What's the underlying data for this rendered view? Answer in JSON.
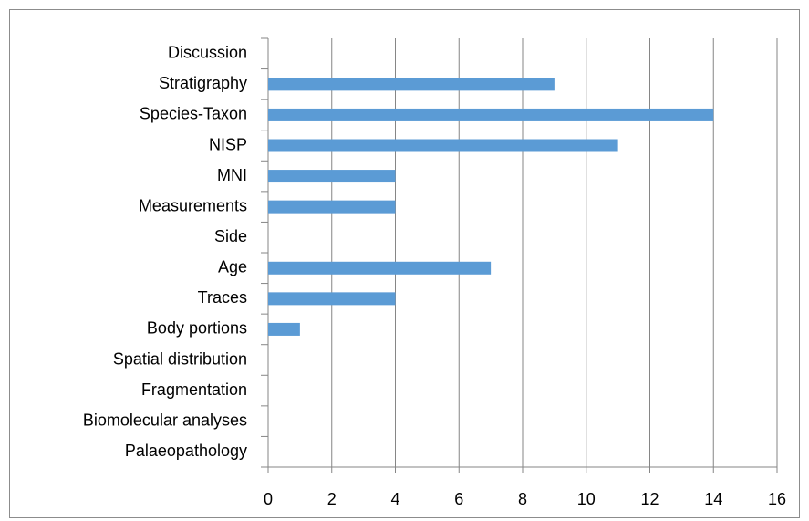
{
  "chart_data": {
    "type": "hbar",
    "categories": [
      "Discussion",
      "Stratigraphy",
      "Species-Taxon",
      "NISP",
      "MNI",
      "Measurements",
      "Side",
      "Age",
      "Traces",
      "Body portions",
      "Spatial distribution",
      "Fragmentation",
      "Biomolecular analyses",
      "Palaeopathology"
    ],
    "values": [
      0,
      9,
      14,
      11,
      4,
      4,
      0,
      7,
      4,
      1,
      0,
      0,
      0,
      0
    ],
    "color": "#5b9bd5",
    "xlim": [
      0,
      16
    ],
    "xticks": [
      0,
      2,
      4,
      6,
      8,
      10,
      12,
      14,
      16
    ],
    "grid": true
  }
}
